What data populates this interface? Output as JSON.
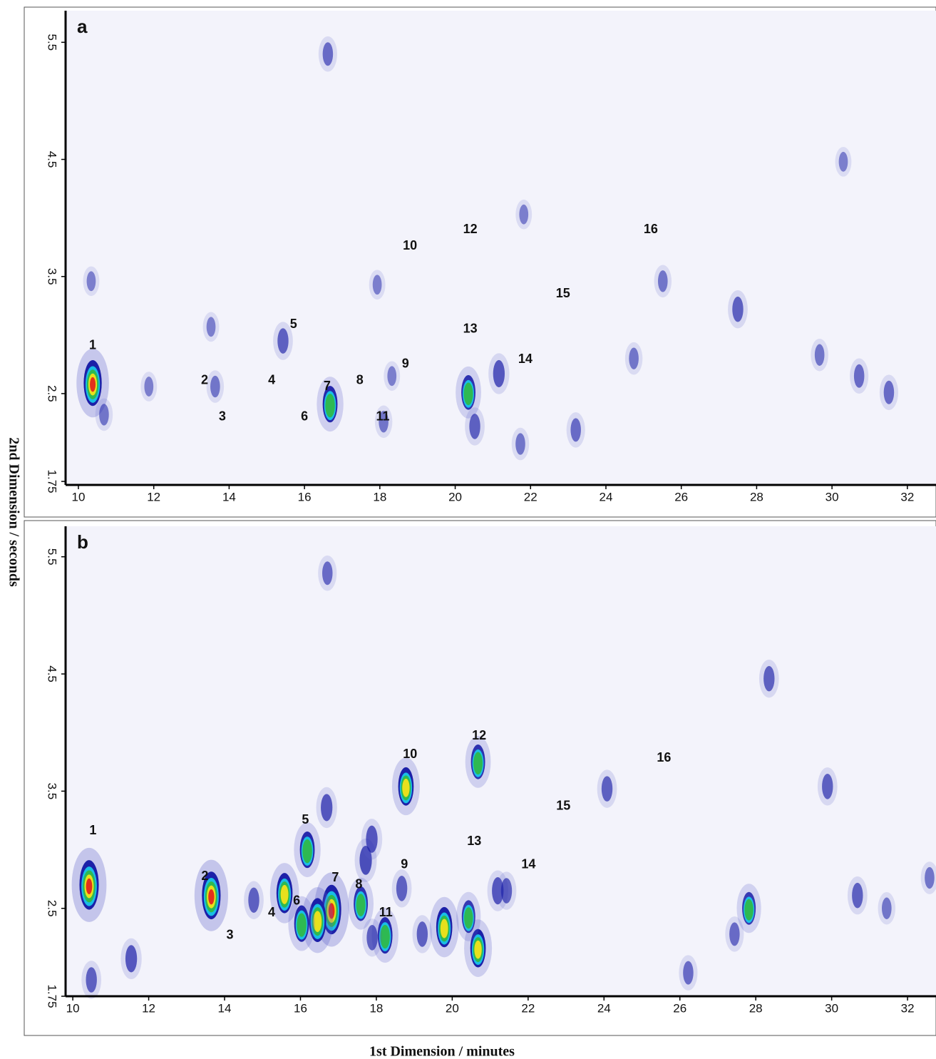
{
  "axis_titles": {
    "x": "1st Dimension / minutes",
    "y": "2nd Dimension / seconds"
  },
  "chart_data": [
    {
      "type": "contour",
      "panel": "a",
      "xlim": [
        9.66,
        32.76
      ],
      "ylim": [
        1.72,
        5.77
      ],
      "xticks": [
        10,
        12,
        14,
        16,
        18,
        20,
        22,
        24,
        26,
        28,
        30,
        32
      ],
      "yticks": [
        1.75,
        2.5,
        3.5,
        4.5,
        5.5
      ],
      "background": "#f3f3fb",
      "peaks": {
        "x": [
          10.38,
          16.68,
          20.35,
          21.16,
          20.52,
          15.43,
          27.5,
          16.62,
          30.72,
          31.51,
          23.2,
          21.73,
          29.67,
          24.74,
          13.63,
          11.87,
          18.1,
          18.32,
          25.51,
          30.3,
          21.82,
          17.93,
          13.52,
          10.34,
          10.68
        ],
        "y": [
          2.59,
          2.41,
          2.51,
          2.67,
          2.22,
          2.95,
          3.22,
          5.4,
          2.65,
          2.51,
          2.19,
          2.07,
          2.83,
          2.8,
          2.56,
          2.56,
          2.26,
          2.65,
          3.46,
          4.48,
          4.03,
          3.43,
          3.07,
          3.46,
          2.32
        ],
        "intensity": [
          0.85,
          0.6,
          0.55,
          0.35,
          0.3,
          0.3,
          0.3,
          0.25,
          0.25,
          0.25,
          0.25,
          0.2,
          0.2,
          0.2,
          0.2,
          0.15,
          0.2,
          0.15,
          0.2,
          0.15,
          0.15,
          0.15,
          0.15,
          0.15,
          0.2
        ]
      },
      "annotations": [
        {
          "text": "1",
          "x": 10.38,
          "y": 2.91
        },
        {
          "text": "2",
          "x": 13.35,
          "y": 2.61
        },
        {
          "text": "3",
          "x": 13.82,
          "y": 2.3
        },
        {
          "text": "4",
          "x": 15.13,
          "y": 2.61
        },
        {
          "text": "5",
          "x": 15.71,
          "y": 3.09
        },
        {
          "text": "6",
          "x": 16.0,
          "y": 2.3
        },
        {
          "text": "7",
          "x": 16.6,
          "y": 2.56
        },
        {
          "text": "8",
          "x": 17.47,
          "y": 2.61
        },
        {
          "text": "9",
          "x": 18.68,
          "y": 2.75
        },
        {
          "text": "10",
          "x": 18.8,
          "y": 3.76
        },
        {
          "text": "11",
          "x": 18.08,
          "y": 2.3
        },
        {
          "text": "12",
          "x": 20.4,
          "y": 3.9
        },
        {
          "text": "13",
          "x": 20.4,
          "y": 3.05
        },
        {
          "text": "14",
          "x": 21.86,
          "y": 2.79
        },
        {
          "text": "15",
          "x": 22.86,
          "y": 3.35
        },
        {
          "text": "16",
          "x": 25.19,
          "y": 3.9
        }
      ]
    },
    {
      "type": "contour",
      "panel": "b",
      "xlim": [
        9.81,
        32.75
      ],
      "ylim": [
        1.75,
        5.76
      ],
      "xticks": [
        10,
        12,
        14,
        16,
        18,
        20,
        22,
        24,
        26,
        28,
        30,
        32
      ],
      "yticks": [
        1.75,
        2.5,
        3.5,
        4.5,
        5.5
      ],
      "background": "#f3f3fb",
      "peaks": {
        "x": [
          10.43,
          13.65,
          16.82,
          16.45,
          16.03,
          15.58,
          16.18,
          18.78,
          20.68,
          20.68,
          19.79,
          20.43,
          18.23,
          17.59,
          17.72,
          17.88,
          27.82,
          18.67,
          11.54,
          10.49,
          14.77,
          16.69,
          24.08,
          29.89,
          28.35,
          30.68,
          21.2,
          21.43,
          19.21,
          17.89,
          26.22,
          16.71,
          31.45,
          27.44,
          32.58
        ],
        "y": [
          2.7,
          2.61,
          2.49,
          2.4,
          2.37,
          2.63,
          3.0,
          3.54,
          3.75,
          2.16,
          2.34,
          2.43,
          2.27,
          2.54,
          2.91,
          3.09,
          2.5,
          2.67,
          2.07,
          1.89,
          2.57,
          3.36,
          3.52,
          3.54,
          4.46,
          2.61,
          2.65,
          2.65,
          2.28,
          2.25,
          1.95,
          5.36,
          2.5,
          2.28,
          2.76
        ],
        "intensity": [
          0.95,
          0.9,
          0.95,
          0.8,
          0.6,
          0.7,
          0.6,
          0.65,
          0.55,
          0.65,
          0.7,
          0.5,
          0.6,
          0.55,
          0.4,
          0.35,
          0.5,
          0.3,
          0.35,
          0.3,
          0.3,
          0.35,
          0.3,
          0.3,
          0.3,
          0.3,
          0.35,
          0.3,
          0.3,
          0.3,
          0.25,
          0.25,
          0.2,
          0.25,
          0.2
        ]
      },
      "annotations": [
        {
          "text": "1",
          "x": 10.53,
          "y": 3.16
        },
        {
          "text": "2",
          "x": 13.48,
          "y": 2.77
        },
        {
          "text": "3",
          "x": 14.14,
          "y": 2.27
        },
        {
          "text": "4",
          "x": 15.24,
          "y": 2.46
        },
        {
          "text": "5",
          "x": 16.13,
          "y": 3.25
        },
        {
          "text": "6",
          "x": 15.9,
          "y": 2.56
        },
        {
          "text": "7",
          "x": 16.92,
          "y": 2.76
        },
        {
          "text": "8",
          "x": 17.54,
          "y": 2.7
        },
        {
          "text": "9",
          "x": 18.74,
          "y": 2.87
        },
        {
          "text": "10",
          "x": 18.89,
          "y": 3.81
        },
        {
          "text": "11",
          "x": 18.25,
          "y": 2.46
        },
        {
          "text": "12",
          "x": 20.71,
          "y": 3.97
        },
        {
          "text": "13",
          "x": 20.58,
          "y": 3.07
        },
        {
          "text": "14",
          "x": 22.01,
          "y": 2.87
        },
        {
          "text": "15",
          "x": 22.93,
          "y": 3.37
        },
        {
          "text": "16",
          "x": 25.58,
          "y": 3.78
        }
      ]
    }
  ]
}
